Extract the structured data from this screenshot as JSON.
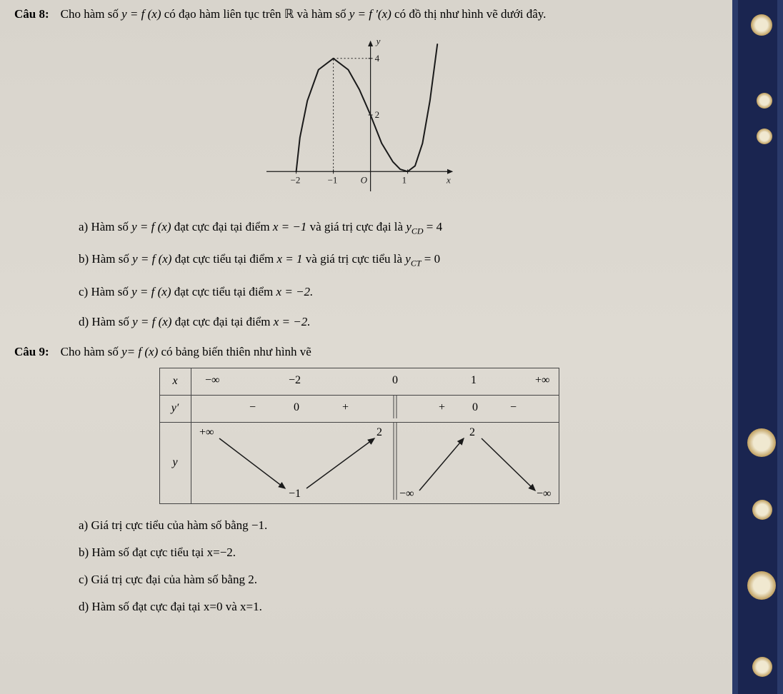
{
  "q8": {
    "label": "Câu 8:",
    "text_parts": {
      "p1": "Cho hàm số ",
      "p2": " có đạo hàm liên tục trên ",
      "p3": " và hàm số ",
      "p4": " có đồ thị như hình vẽ dưới đây."
    },
    "math": {
      "yfx": "y = f (x)",
      "R": "ℝ",
      "yfpx": "y = f ′(x)"
    },
    "graph": {
      "xmin": -2.8,
      "xmax": 2.2,
      "ymin": -0.7,
      "ymax": 4.6,
      "xticks": [
        -2,
        -1,
        1
      ],
      "xtick_labels": [
        "−2",
        "−1",
        "1"
      ],
      "yticks": [
        2,
        4
      ],
      "ytick_labels": [
        "2",
        "4"
      ],
      "origin_label": "O",
      "x_axis_label": "x",
      "y_axis_label": "y",
      "curve_color": "#1a1a1a",
      "axis_color": "#1a1a1a",
      "dotted_color": "#1a1a1a",
      "dotted_from": [
        -1,
        0
      ],
      "dotted_to": [
        -1,
        4
      ],
      "dotted_h": [
        4
      ],
      "curve_points": [
        [
          -2,
          0
        ],
        [
          -1.9,
          1.2
        ],
        [
          -1.7,
          2.5
        ],
        [
          -1.4,
          3.6
        ],
        [
          -1,
          4
        ],
        [
          -0.6,
          3.6
        ],
        [
          -0.3,
          2.9
        ],
        [
          0,
          2
        ],
        [
          0.3,
          1.0
        ],
        [
          0.6,
          0.35
        ],
        [
          0.8,
          0.08
        ],
        [
          1,
          0
        ],
        [
          1.2,
          0.2
        ],
        [
          1.4,
          1.0
        ],
        [
          1.6,
          2.5
        ],
        [
          1.8,
          4.5
        ]
      ]
    },
    "options": {
      "a": {
        "pre": "a) Hàm số ",
        "mid": " đạt cực đại tại điểm ",
        "post": " và giá trị cực đại là ",
        "ycd": "y",
        "ycd_sub": "CD",
        "eq": " = 4",
        "x": "x = −1"
      },
      "b": {
        "pre": "b) Hàm số ",
        "mid": " đạt cực tiểu tại điểm ",
        "post": " và giá trị cực tiểu là ",
        "yct": "y",
        "yct_sub": "CT",
        "eq": " = 0",
        "x": "x = 1"
      },
      "c": {
        "pre": "c) Hàm số ",
        "mid": " đạt cực tiểu tại điểm ",
        "x": "x = −2."
      },
      "d": {
        "pre": "d) Hàm số ",
        "mid": " đạt cực đại tại điểm ",
        "x": "x = −2."
      }
    }
  },
  "q9": {
    "label": "Câu 9:",
    "text": "Cho hàm số ",
    "text2": " có bảng biến thiên như hình vẽ",
    "math": {
      "yfx": "y= f (x)"
    },
    "table": {
      "x_label": "x",
      "yprime_label": "y′",
      "y_label": "y",
      "x_values": [
        "−∞",
        "−2",
        "0",
        "1",
        "+∞"
      ],
      "yprime_values": [
        "−",
        "0",
        "+",
        "",
        "+",
        "0",
        "−"
      ],
      "y_top_left": "+∞",
      "y_val_m1": "−1",
      "y_val_2a": "2",
      "y_bottom_mid": "−∞",
      "y_val_2b": "2",
      "y_bottom_right": "−∞",
      "arrow_color": "#1a1a1a",
      "border_color": "#444444"
    },
    "options": {
      "a": "a) Giá trị cực tiểu của hàm số bằng −1.",
      "b": "b) Hàm số đạt cực tiểu tại x=−2.",
      "c": "c) Giá trị cực đại của hàm số bằng 2.",
      "d": "d) Hàm số đạt cực đại tại x=0 và x=1."
    }
  }
}
